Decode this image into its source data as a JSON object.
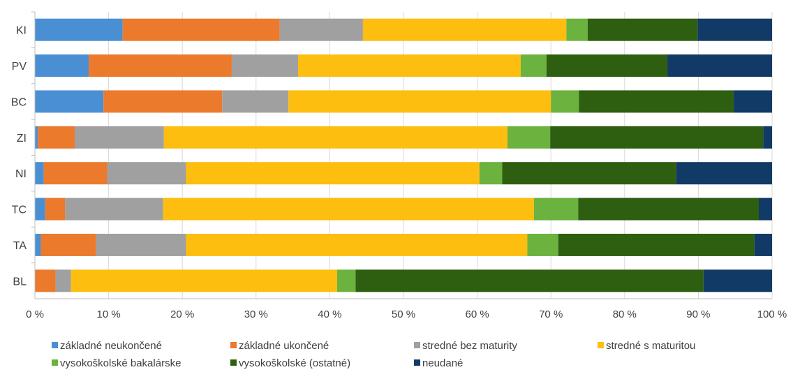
{
  "chart_data": {
    "type": "bar",
    "orientation": "horizontal",
    "stacked": "percent",
    "categories": [
      "KI",
      "PV",
      "BC",
      "ZI",
      "NI",
      "TC",
      "TA",
      "BL"
    ],
    "series": [
      {
        "name": "základné neukončené",
        "color": "#4a8fd4",
        "values": [
          11.9,
          7.3,
          9.3,
          0.4,
          1.2,
          1.4,
          0.8,
          0.0
        ]
      },
      {
        "name": "základné ukončené",
        "color": "#ec7a2c",
        "values": [
          21.3,
          19.4,
          16.1,
          5.0,
          8.6,
          2.7,
          7.5,
          2.8
        ]
      },
      {
        "name": "stredné bez maturity",
        "color": "#a0a0a0",
        "values": [
          11.3,
          9.0,
          9.0,
          12.1,
          10.7,
          13.3,
          12.2,
          2.1
        ]
      },
      {
        "name": "stredné s maturitou",
        "color": "#fdbe10",
        "values": [
          27.6,
          30.2,
          35.6,
          46.6,
          39.8,
          50.3,
          46.3,
          36.1
        ]
      },
      {
        "name": "vysokoškolské bakalárske",
        "color": "#6bb23e",
        "values": [
          2.9,
          3.5,
          3.8,
          5.8,
          3.1,
          6.0,
          4.2,
          2.5
        ]
      },
      {
        "name": "vysokoškolské (ostatné)",
        "color": "#2e5e10",
        "values": [
          14.9,
          16.4,
          21.0,
          28.9,
          23.6,
          24.5,
          26.6,
          47.2
        ]
      },
      {
        "name": "neudané",
        "color": "#123a66",
        "values": [
          10.1,
          14.2,
          5.2,
          1.2,
          13.0,
          1.8,
          2.4,
          9.3
        ]
      }
    ],
    "xlim": [
      0,
      100
    ],
    "x_ticks": [
      "0 %",
      "10 %",
      "20 %",
      "30 %",
      "40 %",
      "50 %",
      "60 %",
      "70 %",
      "80 %",
      "90 %",
      "100 %"
    ],
    "grid": true,
    "legend_position": "bottom"
  }
}
